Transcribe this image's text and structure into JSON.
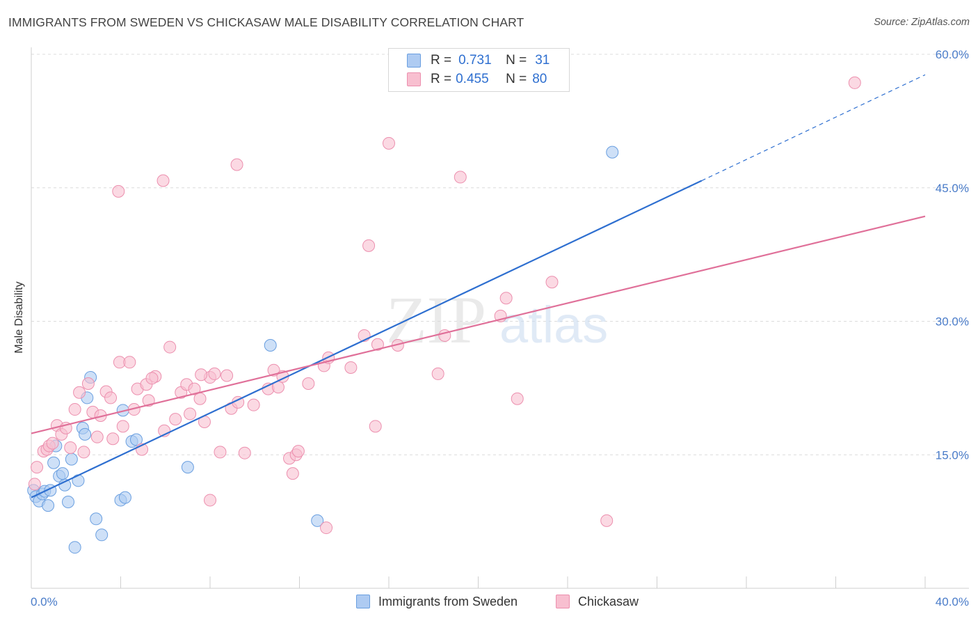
{
  "title": "IMMIGRANTS FROM SWEDEN VS CHICKASAW MALE DISABILITY CORRELATION CHART",
  "source": "Source: ZipAtlas.com",
  "watermark": {
    "zip": "ZIP",
    "atlas": "atlas"
  },
  "legend": {
    "rows": [
      {
        "r_label": "R =",
        "r_value": "0.731",
        "n_label": "N =",
        "n_value": "31",
        "color": "#aecbf2"
      },
      {
        "r_label": "R =",
        "r_value": "0.455",
        "n_label": "N =",
        "n_value": "80",
        "color": "#f8bfd0"
      }
    ]
  },
  "bottom_legend": [
    {
      "label": "Immigrants from Sweden",
      "color": "#aecbf2"
    },
    {
      "label": "Chickasaw",
      "color": "#f8bfd0"
    }
  ],
  "chart_data": {
    "type": "scatter",
    "title": "IMMIGRANTS FROM SWEDEN VS CHICKASAW MALE DISABILITY CORRELATION CHART",
    "xlabel": "",
    "ylabel": "Male Disability",
    "xlim": [
      0,
      40
    ],
    "ylim": [
      0,
      60
    ],
    "x_tick_labels": [
      "0.0%",
      "40.0%"
    ],
    "y_ticks": [
      15,
      30,
      45,
      60
    ],
    "y_tick_labels": [
      "15.0%",
      "30.0%",
      "45.0%",
      "60.0%"
    ],
    "series": [
      {
        "name": "Immigrants from Sweden",
        "color": "#6a9fe0",
        "fill": "#aecbf2",
        "line_color": "#2e6fd0",
        "r": 0.731,
        "n": 31,
        "trend": {
          "x0": 0,
          "y0": 10.2,
          "x1": 30,
          "y1": 45.8,
          "dash_to_x": 40,
          "dash_to_y": 57.7
        },
        "points": [
          [
            0.1,
            11.0
          ],
          [
            0.2,
            10.3
          ],
          [
            0.35,
            9.8
          ],
          [
            0.5,
            10.6
          ],
          [
            0.6,
            10.9
          ],
          [
            0.75,
            9.3
          ],
          [
            0.85,
            11.0
          ],
          [
            1.0,
            14.1
          ],
          [
            1.1,
            16.0
          ],
          [
            1.25,
            12.6
          ],
          [
            1.4,
            12.9
          ],
          [
            1.5,
            11.6
          ],
          [
            1.65,
            9.7
          ],
          [
            1.8,
            14.5
          ],
          [
            2.1,
            12.1
          ],
          [
            2.3,
            18.0
          ],
          [
            2.4,
            17.3
          ],
          [
            2.5,
            21.4
          ],
          [
            2.65,
            23.7
          ],
          [
            2.9,
            7.8
          ],
          [
            3.15,
            6.0
          ],
          [
            1.95,
            4.6
          ],
          [
            4.0,
            9.9
          ],
          [
            4.2,
            10.2
          ],
          [
            4.1,
            20.0
          ],
          [
            4.5,
            16.5
          ],
          [
            4.7,
            16.7
          ],
          [
            7.0,
            13.6
          ],
          [
            10.7,
            27.3
          ],
          [
            12.8,
            7.6
          ],
          [
            26.0,
            49.0
          ]
        ]
      },
      {
        "name": "Chickasaw",
        "color": "#ec8fae",
        "fill": "#f8bfd0",
        "line_color": "#e07099",
        "r": 0.455,
        "n": 80,
        "trend": {
          "x0": 0,
          "y0": 17.4,
          "x1": 40,
          "y1": 41.8
        },
        "points": [
          [
            0.15,
            11.7
          ],
          [
            0.25,
            13.6
          ],
          [
            0.55,
            15.4
          ],
          [
            0.7,
            15.6
          ],
          [
            0.8,
            16.0
          ],
          [
            0.95,
            16.3
          ],
          [
            1.15,
            18.3
          ],
          [
            1.35,
            17.3
          ],
          [
            1.55,
            18.0
          ],
          [
            1.75,
            15.8
          ],
          [
            1.95,
            20.1
          ],
          [
            2.15,
            22.0
          ],
          [
            2.35,
            15.3
          ],
          [
            2.55,
            23.0
          ],
          [
            2.75,
            19.8
          ],
          [
            2.95,
            17.0
          ],
          [
            3.1,
            19.4
          ],
          [
            3.35,
            22.1
          ],
          [
            3.55,
            21.4
          ],
          [
            3.65,
            16.8
          ],
          [
            3.95,
            25.4
          ],
          [
            4.1,
            18.2
          ],
          [
            4.4,
            25.4
          ],
          [
            4.6,
            20.1
          ],
          [
            4.75,
            22.4
          ],
          [
            4.95,
            15.6
          ],
          [
            5.15,
            22.9
          ],
          [
            5.25,
            21.1
          ],
          [
            5.55,
            23.8
          ],
          [
            5.95,
            17.7
          ],
          [
            6.2,
            27.1
          ],
          [
            6.45,
            19.0
          ],
          [
            6.7,
            22.0
          ],
          [
            6.95,
            22.9
          ],
          [
            7.1,
            19.6
          ],
          [
            7.3,
            22.4
          ],
          [
            7.55,
            21.3
          ],
          [
            7.75,
            18.7
          ],
          [
            8.0,
            23.7
          ],
          [
            8.2,
            24.1
          ],
          [
            8.45,
            15.3
          ],
          [
            8.75,
            23.9
          ],
          [
            8.95,
            20.2
          ],
          [
            9.25,
            20.9
          ],
          [
            9.55,
            15.2
          ],
          [
            9.95,
            20.6
          ],
          [
            10.6,
            22.4
          ],
          [
            10.85,
            24.5
          ],
          [
            11.05,
            22.6
          ],
          [
            11.25,
            23.8
          ],
          [
            11.55,
            14.6
          ],
          [
            11.85,
            15.0
          ],
          [
            11.95,
            15.4
          ],
          [
            12.4,
            23.0
          ],
          [
            13.1,
            25.0
          ],
          [
            13.3,
            25.9
          ],
          [
            14.3,
            24.8
          ],
          [
            14.9,
            28.4
          ],
          [
            15.4,
            18.2
          ],
          [
            15.5,
            27.4
          ],
          [
            16.4,
            27.3
          ],
          [
            18.2,
            24.1
          ],
          [
            18.5,
            28.4
          ],
          [
            19.2,
            46.2
          ],
          [
            21.0,
            30.6
          ],
          [
            21.25,
            32.6
          ],
          [
            21.75,
            21.3
          ],
          [
            23.3,
            34.4
          ],
          [
            25.75,
            7.6
          ],
          [
            36.85,
            56.8
          ],
          [
            3.9,
            44.6
          ],
          [
            5.9,
            45.8
          ],
          [
            9.2,
            47.6
          ],
          [
            16.0,
            50.0
          ],
          [
            15.1,
            38.5
          ],
          [
            13.2,
            6.8
          ],
          [
            8.0,
            9.9
          ],
          [
            11.7,
            12.9
          ],
          [
            5.4,
            23.6
          ],
          [
            7.6,
            24.0
          ]
        ]
      }
    ]
  }
}
